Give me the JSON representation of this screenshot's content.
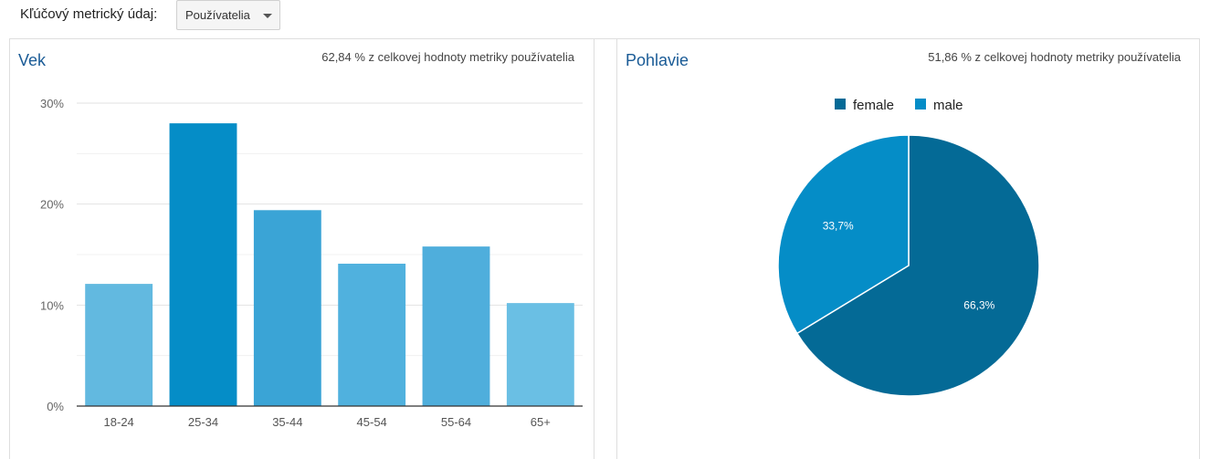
{
  "toolbar": {
    "metric_label": "Kľúčový metrický údaj:",
    "metric_selected": "Používatelia"
  },
  "age_panel": {
    "title": "Vek",
    "subtitle": "62,84 % z celkovej hodnoty metriky používatelia"
  },
  "gender_panel": {
    "title": "Pohlavie",
    "subtitle": "51,86 % z celkovej hodnoty metriky používatelia"
  },
  "chart_data": [
    {
      "type": "bar",
      "title": "Vek",
      "categories": [
        "18-24",
        "25-34",
        "35-44",
        "45-54",
        "55-64",
        "65+"
      ],
      "values": [
        12.1,
        28.0,
        19.4,
        14.1,
        15.8,
        10.2
      ],
      "ylim": [
        0,
        30
      ],
      "yticks": [
        0,
        10,
        20,
        30
      ],
      "ytick_labels": [
        "0%",
        "10%",
        "20%",
        "30%"
      ],
      "grid": true,
      "colors": [
        "#62b9e0",
        "#058dc7",
        "#3aa4d6",
        "#50b1de",
        "#4faedc",
        "#6abfe4"
      ]
    },
    {
      "type": "pie",
      "title": "Pohlavie",
      "labels": [
        "female",
        "male"
      ],
      "values": [
        66.3,
        33.7
      ],
      "value_labels": [
        "66,3%",
        "33,7%"
      ],
      "colors": [
        "#046a96",
        "#058dc7"
      ],
      "legend": "top"
    }
  ]
}
